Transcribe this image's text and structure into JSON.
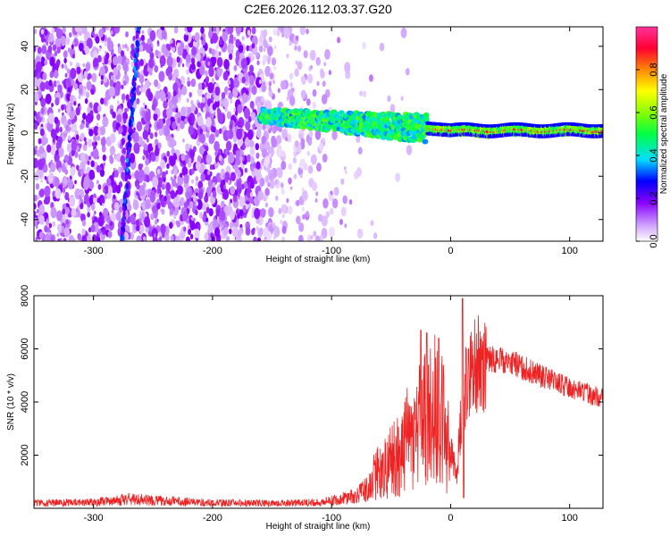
{
  "title": "C2E6.2026.112.03.37.G20",
  "chart_data": [
    {
      "type": "heatmap",
      "xlabel": "Height of straight line (km)",
      "ylabel": "Frequency (Hz)",
      "xlim": [
        -350,
        128
      ],
      "ylim": [
        -50,
        49
      ],
      "xticks": [
        -300,
        -200,
        -100,
        0,
        100
      ],
      "yticks": [
        -40,
        -20,
        0,
        20,
        40
      ],
      "colorbar": {
        "label": "Normalized spectral amplitude",
        "range": [
          0.0,
          1.0
        ],
        "ticks": [
          0.0,
          0.2,
          0.4,
          0.6,
          0.8
        ],
        "colors": [
          "#ffffff",
          "#cc99ff",
          "#8800ff",
          "#0000ff",
          "#00ddff",
          "#00ff44",
          "#88ff00",
          "#ffff00",
          "#ff8800",
          "#ff0033",
          "#ff3399"
        ]
      },
      "features": [
        {
          "name": "noise",
          "x": [
            -350,
            -100
          ],
          "amplitude": 0.1
        },
        {
          "name": "slanted streak",
          "x": [
            -275,
            -260
          ],
          "y": [
            -50,
            49
          ],
          "amplitude": 0.25
        },
        {
          "name": "signal track",
          "x": [
            -160,
            128
          ],
          "y_center": [
            8,
            1
          ],
          "amplitude": 0.9
        }
      ]
    },
    {
      "type": "line",
      "xlabel": "Height of straight line (km)",
      "ylabel": "SNR (10 * v/v)",
      "xlim": [
        -350,
        128
      ],
      "ylim": [
        0,
        8000
      ],
      "xticks": [
        -300,
        -200,
        -100,
        0,
        100
      ],
      "yticks": [
        2000,
        4000,
        6000,
        8000
      ],
      "color": "#ee2222",
      "envelope": {
        "x": [
          -350,
          -300,
          -270,
          -250,
          -200,
          -150,
          -110,
          -80,
          -60,
          -45,
          -30,
          -20,
          -10,
          0,
          5,
          10,
          15,
          20,
          30,
          40,
          50,
          60,
          70,
          80,
          90,
          100,
          110,
          120,
          128
        ],
        "y": [
          260,
          300,
          450,
          400,
          280,
          250,
          300,
          600,
          1400,
          1900,
          3000,
          3500,
          4000,
          2200,
          1200,
          4200,
          4900,
          5300,
          5600,
          5600,
          5500,
          5300,
          5100,
          4900,
          4700,
          4550,
          4400,
          4250,
          4150
        ]
      },
      "peaks": [
        {
          "x": -25,
          "y": 6700
        },
        {
          "x": -20,
          "y": 6600
        },
        {
          "x": -10,
          "y": 6400
        },
        {
          "x": 10,
          "y": 7900
        },
        {
          "x": 15,
          "y": 6000
        }
      ]
    }
  ]
}
